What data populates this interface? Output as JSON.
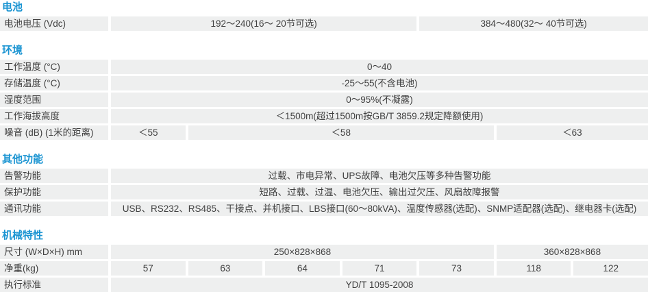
{
  "colors": {
    "heading": "#1a94d2",
    "cell_bg": "#eeefef",
    "text": "#404040"
  },
  "table": {
    "sections": [
      {
        "title": "电池",
        "rows": [
          {
            "label": "电池电压 (Vdc)",
            "cells": [
              {
                "text": "192～240(16～ 20节可选)",
                "span": 4
              },
              {
                "text": "384～480(32～ 40节可选)",
                "span": 3
              }
            ]
          }
        ]
      },
      {
        "title": "环境",
        "rows": [
          {
            "label": "工作温度 (°C)",
            "cells": [
              {
                "text": "0～40",
                "span": 7
              }
            ]
          },
          {
            "label": "存储温度 (°C)",
            "cells": [
              {
                "text": "-25～55(不含电池)",
                "span": 7
              }
            ]
          },
          {
            "label": "湿度范围",
            "cells": [
              {
                "text": "0～95%(不凝露)",
                "span": 7
              }
            ]
          },
          {
            "label": "工作海拔高度",
            "cells": [
              {
                "text": "＜1500m(超过1500m按GB/T 3859.2规定降额使用)",
                "span": 7
              }
            ]
          },
          {
            "label": "噪音 (dB) (1米的距离)",
            "cells": [
              {
                "text": "＜55",
                "span": 1
              },
              {
                "text": "＜58",
                "span": 4
              },
              {
                "text": "＜63",
                "span": 2
              }
            ]
          }
        ]
      },
      {
        "title": "其他功能",
        "rows": [
          {
            "label": "告警功能",
            "cells": [
              {
                "text": "过载、市电异常、UPS故障、电池欠压等多种告警功能",
                "span": 7
              }
            ]
          },
          {
            "label": "保护功能",
            "cells": [
              {
                "text": "短路、过载、过温、电池欠压、输出过欠压、风扇故障报警",
                "span": 7
              }
            ]
          },
          {
            "label": "通讯功能",
            "cells": [
              {
                "text": "USB、RS232、RS485、干接点、并机接口、LBS接口(60～80kVA)、温度传感器(选配)、SNMP适配器(选配)、继电器卡(选配)",
                "span": 7
              }
            ]
          }
        ]
      },
      {
        "title": "机械特性",
        "rows": [
          {
            "label": "尺寸 (W×D×H) mm",
            "cells": [
              {
                "text": "250×828×868",
                "span": 5
              },
              {
                "text": "360×828×868",
                "span": 2
              }
            ]
          },
          {
            "label": "净重(kg)",
            "cells": [
              {
                "text": "57",
                "span": 1
              },
              {
                "text": "63",
                "span": 1
              },
              {
                "text": "64",
                "span": 1
              },
              {
                "text": "71",
                "span": 1
              },
              {
                "text": "73",
                "span": 1
              },
              {
                "text": "118",
                "span": 1
              },
              {
                "text": "122",
                "span": 1
              }
            ]
          },
          {
            "label": "执行标准",
            "cells": [
              {
                "text": "YD/T 1095-2008",
                "span": 7
              }
            ]
          }
        ]
      }
    ]
  }
}
